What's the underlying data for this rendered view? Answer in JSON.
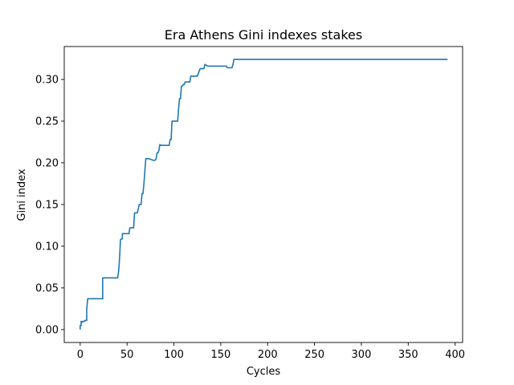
{
  "chart_data": {
    "type": "line",
    "title": "Era Athens Gini indexes stakes",
    "xlabel": "Cycles",
    "ylabel": "Gini index",
    "xlim": [
      -17,
      408
    ],
    "ylim": [
      -0.0155,
      0.3395
    ],
    "xticks": [
      0,
      50,
      100,
      150,
      200,
      250,
      300,
      350,
      400
    ],
    "xtick_labels": [
      "0",
      "50",
      "100",
      "150",
      "200",
      "250",
      "300",
      "350",
      "400"
    ],
    "yticks": [
      0.0,
      0.05,
      0.1,
      0.15,
      0.2,
      0.25,
      0.3
    ],
    "ytick_labels": [
      "0.00",
      "0.05",
      "0.10",
      "0.15",
      "0.20",
      "0.25",
      "0.30"
    ],
    "grid": false,
    "series": [
      {
        "color": "#1f77b4",
        "x": [
          0,
          0,
          1,
          1,
          2,
          3,
          3,
          5,
          5,
          6,
          7,
          7,
          8,
          9,
          10,
          11,
          11,
          18,
          24,
          24,
          30,
          36,
          40,
          41,
          42,
          43,
          45,
          45,
          48,
          52,
          53,
          57,
          58,
          60,
          61,
          63,
          64,
          65,
          66,
          67,
          68,
          69,
          70,
          71,
          72,
          73,
          78,
          80,
          81,
          82,
          83,
          84,
          85,
          86,
          87,
          88,
          90,
          95,
          96,
          97,
          98,
          99,
          104,
          105,
          106,
          107,
          108,
          109,
          110,
          111,
          112,
          113,
          116,
          117,
          118,
          119,
          124,
          125,
          128,
          129,
          130,
          132,
          133,
          136,
          137,
          138,
          139,
          140,
          141,
          145,
          150,
          156,
          157,
          158,
          162,
          163,
          164,
          165,
          166,
          170,
          175,
          200,
          300,
          392
        ],
        "y": [
          0.0,
          0.005,
          0.005,
          0.01,
          0.009,
          0.009,
          0.01,
          0.01,
          0.011,
          0.011,
          0.011,
          0.024,
          0.037,
          0.037,
          0.037,
          0.037,
          0.037,
          0.037,
          0.037,
          0.062,
          0.062,
          0.062,
          0.062,
          0.07,
          0.085,
          0.108,
          0.109,
          0.115,
          0.115,
          0.115,
          0.122,
          0.122,
          0.14,
          0.14,
          0.14,
          0.15,
          0.15,
          0.15,
          0.163,
          0.163,
          0.175,
          0.19,
          0.205,
          0.205,
          0.205,
          0.205,
          0.203,
          0.203,
          0.205,
          0.212,
          0.212,
          0.215,
          0.222,
          0.221,
          0.221,
          0.221,
          0.221,
          0.221,
          0.228,
          0.228,
          0.25,
          0.25,
          0.25,
          0.265,
          0.277,
          0.277,
          0.292,
          0.292,
          0.294,
          0.294,
          0.297,
          0.297,
          0.297,
          0.297,
          0.304,
          0.304,
          0.304,
          0.304,
          0.313,
          0.313,
          0.313,
          0.313,
          0.318,
          0.316,
          0.316,
          0.316,
          0.316,
          0.316,
          0.316,
          0.316,
          0.316,
          0.316,
          0.314,
          0.314,
          0.314,
          0.318,
          0.324,
          0.324,
          0.324,
          0.324,
          0.324,
          0.324,
          0.324,
          0.324
        ]
      }
    ]
  }
}
